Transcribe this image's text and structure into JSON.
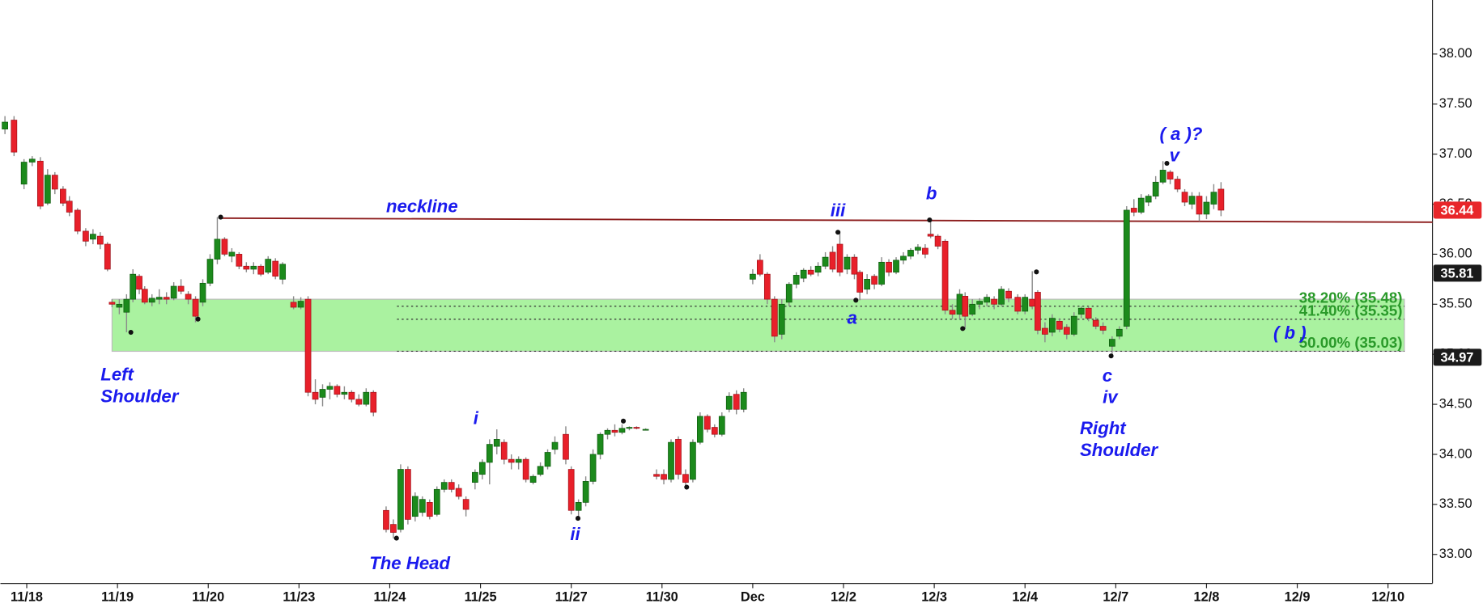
{
  "chart_data": {
    "type": "candlestick",
    "up_color": "#1c8a1c",
    "down_color": "#e8202a",
    "wick_color": "#8a8a8a",
    "xlim": [
      -0.29,
      15.49
    ],
    "xticks": [
      {
        "value": 0,
        "label": "11/18"
      },
      {
        "value": 1,
        "label": "11/19"
      },
      {
        "value": 2,
        "label": "11/20"
      },
      {
        "value": 3,
        "label": "11/23"
      },
      {
        "value": 4,
        "label": "11/24"
      },
      {
        "value": 5,
        "label": "11/25"
      },
      {
        "value": 6,
        "label": "11/27"
      },
      {
        "value": 7,
        "label": "11/30"
      },
      {
        "value": 8,
        "label": "Dec"
      },
      {
        "value": 9,
        "label": "12/2"
      },
      {
        "value": 10,
        "label": "12/3"
      },
      {
        "value": 11,
        "label": "12/4"
      },
      {
        "value": 12,
        "label": "12/7"
      },
      {
        "value": 13,
        "label": "12/8"
      },
      {
        "value": 14,
        "label": "12/9"
      },
      {
        "value": 15,
        "label": "12/10"
      }
    ],
    "ylim": [
      32.71,
      38.54
    ],
    "yticks": [
      {
        "value": 33,
        "label": "33.00"
      },
      {
        "value": 33.5,
        "label": "33.50"
      },
      {
        "value": 34,
        "label": "34.00"
      },
      {
        "value": 34.5,
        "label": "34.50"
      },
      {
        "value": 35,
        "label": "35.00"
      },
      {
        "value": 35.5,
        "label": "35.50"
      },
      {
        "value": 36,
        "label": "36.00"
      },
      {
        "value": 36.5,
        "label": "36.50"
      },
      {
        "value": 37,
        "label": "37.00"
      },
      {
        "value": 37.5,
        "label": "37.50"
      },
      {
        "value": 38,
        "label": "38.00"
      }
    ],
    "x": [
      -0.24,
      -0.14,
      -0.03,
      0.06,
      0.15,
      0.23,
      0.31,
      0.4,
      0.47,
      0.56,
      0.65,
      0.73,
      0.81,
      0.89,
      0.94,
      1.02,
      1.1,
      1.17,
      1.24,
      1.3,
      1.38,
      1.46,
      1.54,
      1.62,
      1.7,
      1.78,
      1.86,
      1.94,
      2.02,
      2.1,
      2.18,
      2.26,
      2.34,
      2.42,
      2.5,
      2.58,
      2.66,
      2.74,
      2.82,
      2.94,
      3.02,
      3.1,
      3.18,
      3.26,
      3.34,
      3.42,
      3.5,
      3.58,
      3.66,
      3.74,
      3.82,
      3.96,
      4.04,
      4.12,
      4.2,
      4.28,
      4.36,
      4.44,
      4.52,
      4.6,
      4.68,
      4.76,
      4.84,
      4.94,
      5.02,
      5.1,
      5.18,
      5.26,
      5.34,
      5.42,
      5.5,
      5.58,
      5.66,
      5.74,
      5.82,
      5.94,
      6.0,
      6.08,
      6.16,
      6.24,
      6.32,
      6.4,
      6.48,
      6.56,
      6.64,
      6.72,
      6.82,
      6.94,
      7.02,
      7.1,
      7.18,
      7.26,
      7.34,
      7.42,
      7.5,
      7.58,
      7.66,
      7.74,
      7.82,
      7.9,
      8.0,
      8.08,
      8.16,
      8.24,
      8.32,
      8.4,
      8.48,
      8.56,
      8.64,
      8.72,
      8.8,
      8.88,
      8.96,
      9.04,
      9.12,
      9.18,
      9.26,
      9.34,
      9.42,
      9.5,
      9.58,
      9.66,
      9.74,
      9.82,
      9.9,
      9.96,
      10.04,
      10.12,
      10.2,
      10.28,
      10.34,
      10.42,
      10.5,
      10.58,
      10.66,
      10.74,
      10.82,
      10.92,
      11.0,
      11.08,
      11.14,
      11.22,
      11.3,
      11.38,
      11.46,
      11.54,
      11.62,
      11.7,
      11.78,
      11.86,
      11.96,
      12.04,
      12.12,
      12.2,
      12.28,
      12.36,
      12.44,
      12.52,
      12.6,
      12.68,
      12.76,
      12.84,
      12.92,
      13.0,
      13.08,
      13.16
    ],
    "open": [
      37.25,
      37.34,
      36.7,
      36.92,
      36.93,
      36.51,
      36.79,
      36.65,
      36.53,
      36.44,
      36.23,
      36.15,
      36.18,
      36.1,
      35.52,
      35.47,
      35.42,
      35.55,
      35.78,
      35.65,
      35.52,
      35.55,
      35.57,
      35.56,
      35.68,
      35.6,
      35.55,
      35.52,
      35.71,
      35.95,
      36.15,
      35.98,
      36.0,
      35.88,
      35.85,
      35.88,
      35.82,
      35.93,
      35.75,
      35.52,
      35.47,
      35.55,
      34.62,
      34.57,
      34.65,
      34.68,
      34.6,
      34.62,
      34.55,
      34.5,
      34.62,
      33.44,
      33.3,
      33.25,
      33.85,
      33.38,
      33.42,
      33.52,
      33.4,
      33.65,
      33.72,
      33.66,
      33.55,
      33.72,
      33.8,
      33.92,
      34.08,
      34.12,
      33.95,
      33.92,
      33.95,
      33.72,
      33.8,
      33.88,
      34.05,
      34.2,
      33.85,
      33.44,
      33.52,
      33.73,
      34.0,
      34.2,
      34.24,
      34.22,
      34.26,
      34.27,
      34.25,
      33.8,
      33.8,
      33.75,
      34.15,
      33.8,
      33.75,
      34.12,
      34.38,
      34.27,
      34.2,
      34.45,
      34.6,
      34.45,
      35.75,
      35.94,
      35.8,
      35.55,
      35.2,
      35.52,
      35.7,
      35.76,
      35.84,
      35.82,
      35.88,
      36.02,
      36.1,
      35.85,
      35.97,
      35.82,
      35.65,
      35.78,
      35.7,
      35.92,
      35.82,
      35.94,
      35.98,
      36.04,
      36.06,
      36.2,
      36.18,
      36.13,
      35.44,
      35.4,
      35.58,
      35.4,
      35.5,
      35.52,
      35.55,
      35.5,
      35.63,
      35.57,
      35.43,
      35.55,
      35.62,
      35.26,
      35.22,
      35.33,
      35.27,
      35.2,
      35.4,
      35.46,
      35.34,
      35.28,
      35.08,
      35.18,
      35.28,
      36.46,
      36.42,
      36.52,
      36.58,
      36.72,
      36.82,
      36.75,
      36.62,
      36.5,
      36.58,
      36.4,
      36.5,
      36.65
    ],
    "high": [
      37.38,
      37.38,
      36.95,
      36.98,
      36.97,
      36.85,
      36.82,
      36.68,
      36.58,
      36.46,
      36.26,
      36.25,
      36.22,
      36.12,
      35.55,
      35.55,
      35.6,
      35.85,
      35.8,
      35.68,
      35.6,
      35.65,
      35.62,
      35.72,
      35.75,
      35.63,
      35.58,
      35.75,
      36.0,
      36.37,
      36.17,
      36.06,
      36.02,
      35.92,
      35.92,
      35.9,
      35.98,
      35.96,
      35.92,
      35.58,
      35.57,
      35.58,
      34.75,
      34.7,
      34.72,
      34.7,
      34.68,
      34.64,
      34.6,
      34.66,
      34.64,
      33.48,
      33.35,
      33.9,
      33.88,
      33.62,
      33.58,
      33.55,
      33.68,
      33.75,
      33.75,
      33.7,
      33.58,
      33.85,
      33.95,
      34.15,
      34.25,
      34.15,
      34.0,
      33.98,
      33.97,
      33.8,
      33.92,
      34.05,
      34.18,
      34.28,
      33.88,
      33.55,
      33.78,
      34.05,
      34.22,
      34.26,
      34.3,
      34.3,
      34.28,
      34.28,
      34.26,
      33.85,
      33.85,
      34.15,
      34.18,
      33.85,
      34.15,
      34.42,
      34.4,
      34.3,
      34.42,
      34.62,
      34.64,
      34.66,
      35.85,
      36.0,
      35.82,
      35.58,
      35.55,
      35.72,
      35.82,
      35.86,
      35.88,
      35.92,
      36.02,
      36.08,
      36.23,
      36.0,
      36.0,
      35.84,
      35.8,
      35.8,
      35.97,
      35.95,
      35.97,
      36.02,
      36.06,
      36.1,
      36.1,
      36.35,
      36.2,
      36.15,
      35.5,
      35.65,
      35.62,
      35.55,
      35.56,
      35.6,
      35.58,
      35.68,
      35.66,
      35.6,
      35.6,
      35.83,
      35.64,
      35.32,
      35.4,
      35.36,
      35.3,
      35.42,
      35.48,
      35.48,
      35.37,
      35.32,
      35.18,
      35.28,
      36.48,
      36.55,
      36.6,
      36.6,
      36.78,
      36.93,
      36.84,
      36.78,
      36.65,
      36.62,
      36.62,
      36.58,
      36.7,
      36.72
    ],
    "low": [
      37.2,
      36.98,
      36.65,
      36.88,
      36.45,
      36.49,
      36.6,
      36.48,
      36.38,
      36.2,
      36.08,
      36.1,
      36.05,
      35.83,
      35.47,
      35.4,
      35.22,
      35.52,
      35.6,
      35.5,
      35.48,
      35.5,
      35.5,
      35.54,
      35.6,
      35.5,
      35.32,
      35.48,
      35.68,
      35.9,
      35.98,
      35.92,
      35.85,
      35.82,
      35.8,
      35.78,
      35.8,
      35.75,
      35.7,
      35.45,
      35.45,
      34.58,
      34.5,
      34.48,
      34.55,
      34.57,
      34.55,
      34.52,
      34.48,
      34.48,
      34.38,
      33.22,
      33.16,
      33.22,
      33.3,
      33.33,
      33.38,
      33.35,
      33.38,
      33.62,
      33.62,
      33.55,
      33.38,
      33.65,
      33.75,
      33.7,
      34.0,
      33.9,
      33.85,
      33.85,
      33.72,
      33.7,
      33.78,
      33.85,
      34.0,
      33.9,
      33.4,
      33.35,
      33.48,
      33.7,
      33.95,
      34.15,
      34.18,
      34.2,
      34.24,
      34.25,
      34.24,
      33.75,
      33.7,
      33.72,
      33.75,
      33.68,
      33.72,
      34.1,
      34.22,
      34.17,
      34.18,
      34.42,
      34.4,
      34.42,
      35.7,
      35.78,
      35.5,
      35.12,
      35.15,
      35.48,
      35.66,
      35.72,
      35.78,
      35.78,
      35.85,
      35.82,
      35.78,
      35.8,
      35.75,
      35.54,
      35.6,
      35.65,
      35.68,
      35.78,
      35.8,
      35.9,
      35.95,
      36.0,
      35.96,
      36.16,
      36.05,
      35.4,
      35.35,
      35.35,
      35.25,
      35.38,
      35.45,
      35.48,
      35.45,
      35.48,
      35.52,
      35.4,
      35.4,
      35.45,
      35.2,
      35.12,
      35.18,
      35.22,
      35.15,
      35.18,
      35.36,
      35.33,
      35.25,
      35.2,
      34.99,
      35.15,
      35.25,
      36.38,
      36.4,
      36.48,
      36.55,
      36.7,
      36.7,
      36.62,
      36.48,
      36.45,
      36.33,
      36.35,
      36.45,
      36.38
    ],
    "close": [
      37.32,
      37.02,
      36.92,
      36.95,
      36.48,
      36.79,
      36.65,
      36.51,
      36.42,
      36.23,
      36.13,
      36.2,
      36.1,
      35.85,
      35.5,
      35.5,
      35.55,
      35.8,
      35.65,
      35.52,
      35.56,
      35.57,
      35.55,
      35.68,
      35.63,
      35.55,
      35.38,
      35.71,
      35.95,
      36.15,
      36.0,
      36.02,
      35.88,
      35.85,
      35.88,
      35.8,
      35.95,
      35.78,
      35.9,
      35.47,
      35.53,
      34.62,
      34.55,
      34.65,
      34.68,
      34.6,
      34.62,
      34.55,
      34.5,
      34.62,
      34.42,
      33.25,
      33.22,
      33.85,
      33.35,
      33.58,
      33.55,
      33.38,
      33.65,
      33.72,
      33.65,
      33.58,
      33.45,
      33.82,
      33.92,
      34.1,
      34.15,
      33.95,
      33.92,
      33.95,
      33.75,
      33.78,
      33.88,
      34.02,
      34.12,
      33.95,
      33.44,
      33.52,
      33.73,
      34.0,
      34.2,
      34.24,
      34.22,
      34.26,
      34.27,
      34.26,
      34.25,
      33.78,
      33.75,
      34.12,
      33.8,
      33.72,
      34.12,
      34.38,
      34.25,
      34.2,
      34.38,
      34.58,
      34.45,
      34.62,
      35.8,
      35.8,
      35.55,
      35.18,
      35.5,
      35.7,
      35.79,
      35.84,
      35.8,
      35.88,
      35.97,
      35.85,
      35.82,
      35.97,
      35.8,
      35.62,
      35.75,
      35.7,
      35.92,
      35.82,
      35.94,
      35.98,
      36.04,
      36.07,
      36.0,
      36.18,
      36.08,
      35.44,
      35.4,
      35.6,
      35.38,
      35.5,
      35.53,
      35.57,
      35.5,
      35.65,
      35.56,
      35.43,
      35.57,
      35.48,
      35.24,
      35.2,
      35.36,
      35.25,
      35.2,
      35.38,
      35.46,
      35.36,
      35.28,
      35.24,
      35.15,
      35.25,
      36.44,
      36.42,
      36.56,
      36.58,
      36.72,
      36.84,
      36.75,
      36.65,
      36.52,
      36.58,
      36.4,
      36.52,
      36.62,
      36.44
    ],
    "neckline": {
      "x": [
        2.14,
        15.49
      ],
      "y": [
        36.36,
        36.32
      ],
      "color": "#8b1a1a"
    },
    "zone": {
      "x": [
        0.94,
        15.18
      ],
      "y": [
        35.03,
        35.55
      ],
      "color": "#aaf2a0"
    },
    "fib_x": [
      4.08,
      15.18
    ],
    "fib_levels": [
      {
        "label": "38.20% (35.48)",
        "value": 35.48
      },
      {
        "label": "41.40% (35.35)",
        "value": 35.35
      },
      {
        "label": "50.00% (35.03)",
        "value": 35.03
      }
    ],
    "fib_color": "#2a9a2a",
    "price_tags": [
      {
        "value": 36.44,
        "color": "#e8262a"
      },
      {
        "value": 35.81,
        "color": "#1a1a1a"
      },
      {
        "value": 34.97,
        "color": "#1a1a1a"
      }
    ],
    "annotations": [
      "neckline",
      "iii",
      "b",
      "( a )?",
      "v",
      "a",
      "Left",
      "Shoulder",
      "The Head",
      "i",
      "ii",
      "c",
      "iv",
      "Right",
      "Shoulder",
      "( b )"
    ],
    "annotation_color": "#1a1aee"
  }
}
